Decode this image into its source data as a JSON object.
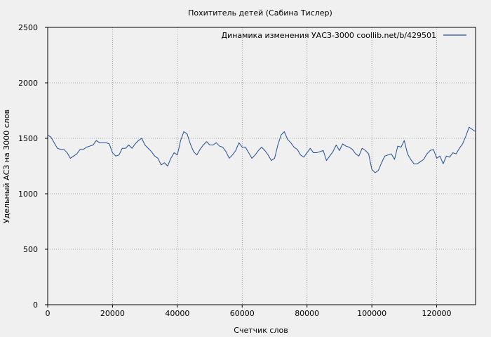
{
  "chart_data": {
    "type": "line",
    "title": "Похититель детей (Сабина Тислер)",
    "xlabel": "Счетчик слов",
    "ylabel": "Удельный АСЗ на 3000 слов",
    "xlim": [
      0,
      132000
    ],
    "ylim": [
      0,
      2500
    ],
    "xticks": [
      0,
      20000,
      40000,
      60000,
      80000,
      100000,
      120000
    ],
    "yticks": [
      0,
      500,
      1000,
      1500,
      2000,
      2500
    ],
    "grid": true,
    "legend_position": "top-right",
    "colors": {
      "series": "#1f4e96",
      "grid": "#8c8c8c",
      "background": "#f0f0f0",
      "axis": "#000000"
    },
    "series": [
      {
        "name": "Динамика изменения УАСЗ-3000  coollib.net/b/429501",
        "x": [
          0,
          1000,
          2000,
          3000,
          4000,
          5000,
          6000,
          7000,
          8000,
          9000,
          10000,
          11000,
          12000,
          13000,
          14000,
          15000,
          16000,
          17000,
          18000,
          19000,
          20000,
          21000,
          22000,
          23000,
          24000,
          25000,
          26000,
          27000,
          28000,
          29000,
          30000,
          31000,
          32000,
          33000,
          34000,
          35000,
          36000,
          37000,
          38000,
          39000,
          40000,
          41000,
          42000,
          43000,
          44000,
          45000,
          46000,
          47000,
          48000,
          49000,
          50000,
          51000,
          52000,
          53000,
          54000,
          55000,
          56000,
          57000,
          58000,
          59000,
          60000,
          61000,
          62000,
          63000,
          64000,
          65000,
          66000,
          67000,
          68000,
          69000,
          70000,
          71000,
          72000,
          73000,
          74000,
          75000,
          76000,
          77000,
          78000,
          79000,
          80000,
          81000,
          82000,
          83000,
          84000,
          85000,
          86000,
          87000,
          88000,
          89000,
          90000,
          91000,
          92000,
          93000,
          94000,
          95000,
          96000,
          97000,
          98000,
          99000,
          100000,
          101000,
          102000,
          103000,
          104000,
          105000,
          106000,
          107000,
          108000,
          109000,
          110000,
          111000,
          112000,
          113000,
          114000,
          115000,
          116000,
          117000,
          118000,
          119000,
          120000,
          121000,
          122000,
          123000,
          124000,
          125000,
          126000,
          127000,
          128000,
          129000,
          130000,
          131000,
          132000
        ],
        "y": [
          1530,
          1510,
          1460,
          1410,
          1400,
          1400,
          1370,
          1320,
          1340,
          1360,
          1400,
          1400,
          1420,
          1430,
          1440,
          1480,
          1460,
          1460,
          1460,
          1450,
          1370,
          1340,
          1350,
          1410,
          1410,
          1440,
          1410,
          1450,
          1480,
          1500,
          1440,
          1410,
          1380,
          1340,
          1320,
          1260,
          1280,
          1250,
          1320,
          1370,
          1350,
          1480,
          1560,
          1540,
          1450,
          1380,
          1350,
          1400,
          1440,
          1470,
          1440,
          1440,
          1460,
          1430,
          1420,
          1380,
          1320,
          1350,
          1390,
          1460,
          1420,
          1420,
          1370,
          1320,
          1350,
          1390,
          1420,
          1390,
          1350,
          1300,
          1320,
          1440,
          1530,
          1560,
          1490,
          1460,
          1420,
          1400,
          1350,
          1330,
          1370,
          1410,
          1370,
          1370,
          1380,
          1390,
          1300,
          1340,
          1380,
          1440,
          1390,
          1450,
          1430,
          1420,
          1400,
          1360,
          1340,
          1410,
          1390,
          1360,
          1220,
          1190,
          1210,
          1280,
          1340,
          1350,
          1360,
          1310,
          1430,
          1420,
          1480,
          1360,
          1310,
          1270,
          1270,
          1290,
          1310,
          1360,
          1390,
          1400,
          1320,
          1340,
          1270,
          1340,
          1330,
          1370,
          1360,
          1410,
          1450,
          1520,
          1600,
          1580,
          1560
        ]
      }
    ]
  }
}
